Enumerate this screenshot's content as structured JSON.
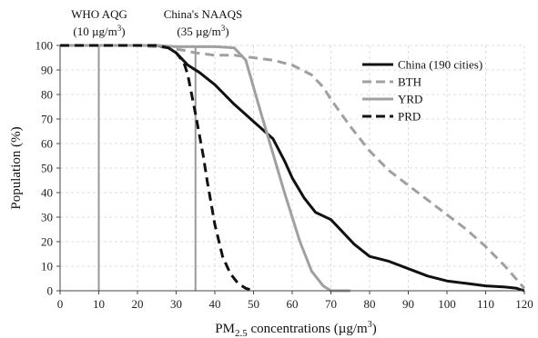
{
  "chart_data": {
    "type": "line",
    "xlabel": "PM2.5 concentrations (µg/m³)",
    "xlabel_parts": {
      "base": "PM",
      "sub": "2.5",
      "rest": " concentrations (µg/m",
      "sup": "3",
      "end": ")"
    },
    "ylabel": "Population (%)",
    "xlim": [
      0,
      120
    ],
    "ylim": [
      0,
      100
    ],
    "xticks": [
      0,
      10,
      20,
      30,
      40,
      50,
      60,
      70,
      80,
      90,
      100,
      110,
      120
    ],
    "yticks": [
      0,
      10,
      20,
      30,
      40,
      50,
      60,
      70,
      80,
      90,
      100
    ],
    "grid": true,
    "legend_position": "top-right",
    "reference_lines": [
      {
        "x": 10,
        "label_line1": "WHO AQG",
        "label_line2_prefix": "(10 µg/m",
        "label_line2_sup": "3",
        "label_line2_suffix": ")"
      },
      {
        "x": 35,
        "label_line1": "China's NAAQS",
        "label_line2_prefix": "(35 µg/m",
        "label_line2_sup": "3",
        "label_line2_suffix": ")"
      }
    ],
    "series": [
      {
        "name": "China (190 cities)",
        "color": "#111111",
        "dash": "solid",
        "x": [
          0,
          20,
          25,
          28,
          30,
          33,
          36,
          40,
          45,
          50,
          55,
          58,
          60,
          63,
          66,
          70,
          73,
          76,
          80,
          85,
          90,
          95,
          100,
          105,
          110,
          115,
          118,
          120
        ],
        "y": [
          100,
          100,
          100,
          99,
          97,
          92,
          89,
          84,
          76,
          69,
          62,
          53,
          46,
          38,
          32,
          29,
          24,
          19,
          14,
          12,
          9,
          6,
          4,
          3,
          2,
          1.5,
          1,
          0
        ]
      },
      {
        "name": "BTH",
        "color": "#a0a0a0",
        "dash": "dashed",
        "x": [
          0,
          20,
          28,
          32,
          35,
          40,
          45,
          50,
          55,
          60,
          65,
          68,
          70,
          75,
          80,
          85,
          90,
          95,
          100,
          105,
          110,
          115,
          120
        ],
        "y": [
          100,
          100,
          99,
          98,
          97,
          96,
          96,
          95,
          94,
          92,
          88,
          83,
          78,
          67,
          57,
          49,
          43,
          37,
          31,
          25,
          18,
          10,
          1
        ]
      },
      {
        "name": "YRD",
        "color": "#a0a0a0",
        "dash": "solid",
        "x": [
          0,
          20,
          25,
          30,
          40,
          45,
          48,
          50,
          52,
          55,
          58,
          60,
          62,
          65,
          68,
          70,
          72,
          75
        ],
        "y": [
          100,
          100,
          100,
          99.5,
          99.5,
          99,
          94,
          83,
          72,
          56,
          40,
          30,
          20,
          8,
          2,
          0,
          0,
          0
        ]
      },
      {
        "name": "PRD",
        "color": "#111111",
        "dash": "dashed",
        "x": [
          0,
          20,
          25,
          28,
          30,
          32,
          33,
          35,
          37,
          38,
          40,
          42,
          44,
          46,
          48,
          50
        ],
        "y": [
          100,
          100,
          100,
          99,
          97,
          93,
          88,
          72,
          55,
          45,
          27,
          14,
          7,
          3,
          1,
          0
        ]
      }
    ]
  }
}
